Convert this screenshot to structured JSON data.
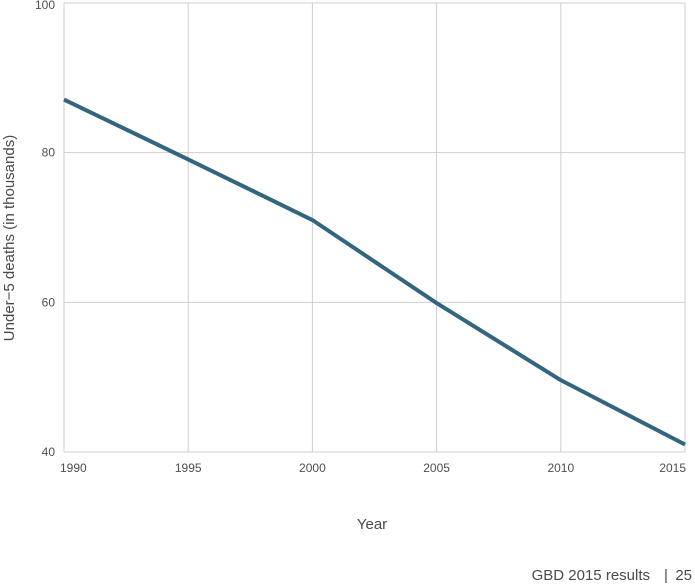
{
  "chart_data": {
    "type": "line",
    "title": "",
    "xlabel": "Year",
    "ylabel": "Under−5 deaths (in thousands)",
    "xlim": [
      1990,
      2015
    ],
    "ylim": [
      40,
      100
    ],
    "x_ticks": [
      "1990",
      "1995",
      "2000",
      "2005",
      "2010",
      "2015"
    ],
    "y_ticks": [
      "40",
      "60",
      "80",
      "100"
    ],
    "grid": true,
    "legend": "none",
    "series": [
      {
        "color": "#33657e",
        "x": [
          1990,
          1995,
          2000,
          2005,
          2010,
          2015
        ],
        "values": [
          87.1,
          79.1,
          71.0,
          59.9,
          49.6,
          41.0
        ]
      }
    ]
  },
  "footer": {
    "source": "GBD 2015 results",
    "separator": "|",
    "page_number": "25"
  },
  "colors": {
    "line": "#33657e",
    "grid": "#cfcfcf",
    "text": "#4a4a4a"
  }
}
